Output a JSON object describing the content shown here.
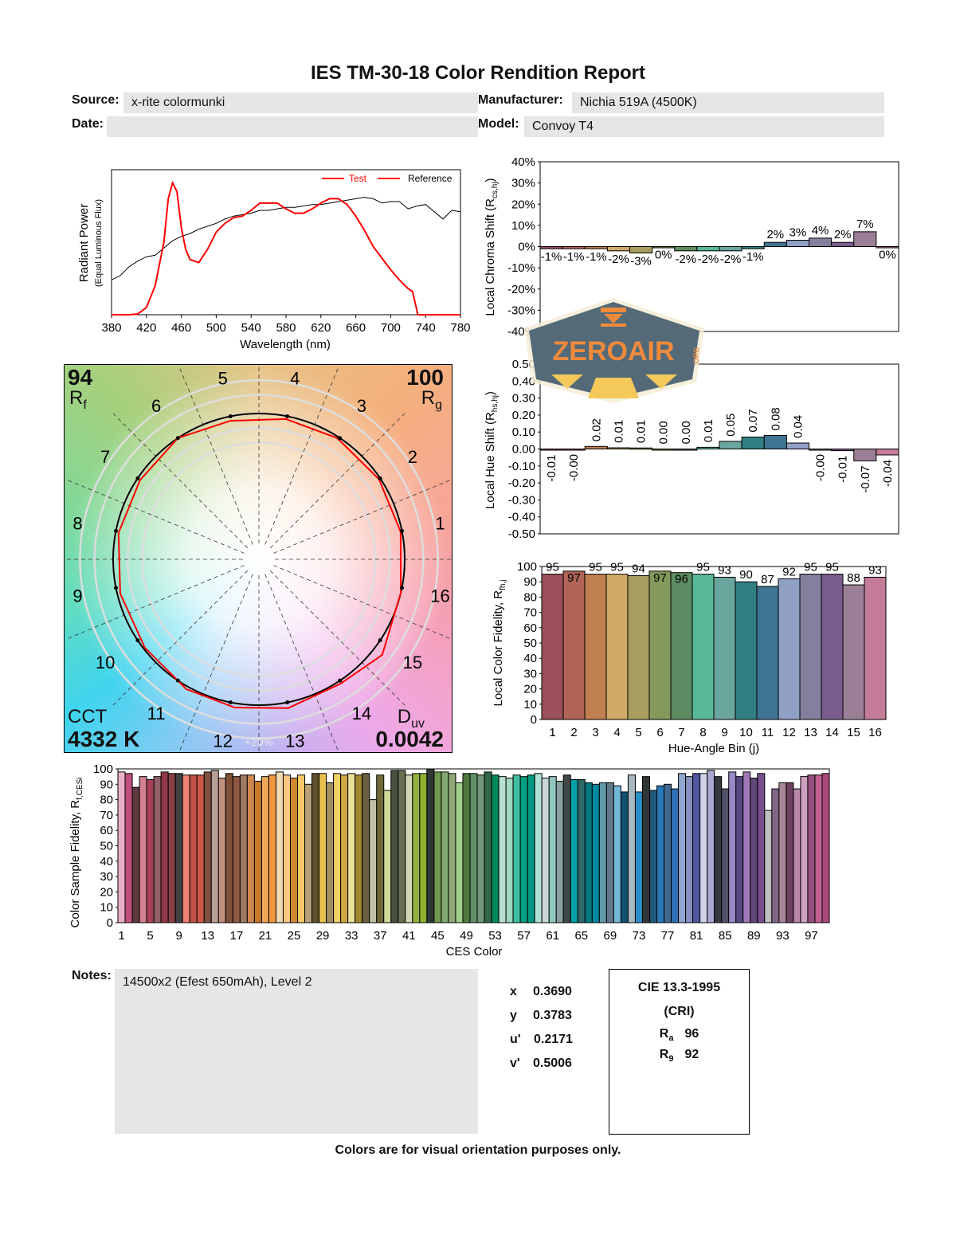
{
  "title": "IES TM-30-18 Color Rendition Report",
  "header": {
    "source_label": "Source:",
    "source": "x-rite colormunki",
    "manufacturer_label": "Manufacturer:",
    "manufacturer": "Nichia 519A (4500K)",
    "date_label": "Date:",
    "date": "",
    "model_label": "Model:",
    "model": "Convoy T4"
  },
  "watermark": {
    "text": "ZEROAIR",
    "suffix": "ORG",
    "colors": {
      "fill": "#546a78",
      "orange": "#f08a3c",
      "yellow": "#f5c85a"
    }
  },
  "vector_graphic": {
    "rf_value": "94",
    "rf_label": "R",
    "rf_sub": "f",
    "rg_value": "100",
    "rg_label": "R",
    "rg_sub": "g",
    "cct_label": "CCT",
    "cct_value": "4332 K",
    "duv_label": "D",
    "duv_sub": "uv",
    "duv_value": "0.0042",
    "ring_label": "+20%",
    "bin_labels": [
      "1",
      "2",
      "3",
      "4",
      "5",
      "6",
      "7",
      "8",
      "9",
      "10",
      "11",
      "12",
      "13",
      "14",
      "15",
      "16"
    ],
    "colors": {
      "test": "#ff0000",
      "reference": "#000000"
    }
  },
  "chart_data": [
    {
      "type": "line",
      "xlabel": "Wavelength (nm)",
      "ylabel": "Radiant Power",
      "ylabel_sub": "(Equal Luminous Flux)",
      "xlim": [
        380,
        780
      ],
      "xticks": [
        380,
        420,
        460,
        500,
        540,
        580,
        620,
        660,
        700,
        740,
        780
      ],
      "legend": "top-right",
      "series": [
        {
          "name": "Test",
          "color": "#ff0000",
          "points": [
            [
              380,
              0
            ],
            [
              400,
              0
            ],
            [
              410,
              0.005
            ],
            [
              420,
              0.05
            ],
            [
              430,
              0.2
            ],
            [
              440,
              0.5
            ],
            [
              445,
              0.8
            ],
            [
              450,
              0.91
            ],
            [
              455,
              0.85
            ],
            [
              460,
              0.6
            ],
            [
              465,
              0.45
            ],
            [
              470,
              0.38
            ],
            [
              480,
              0.36
            ],
            [
              490,
              0.45
            ],
            [
              500,
              0.57
            ],
            [
              510,
              0.63
            ],
            [
              520,
              0.67
            ],
            [
              530,
              0.68
            ],
            [
              540,
              0.72
            ],
            [
              550,
              0.77
            ],
            [
              560,
              0.77
            ],
            [
              570,
              0.77
            ],
            [
              580,
              0.73
            ],
            [
              590,
              0.7
            ],
            [
              600,
              0.7
            ],
            [
              610,
              0.73
            ],
            [
              620,
              0.77
            ],
            [
              630,
              0.8
            ],
            [
              640,
              0.8
            ],
            [
              650,
              0.76
            ],
            [
              660,
              0.68
            ],
            [
              670,
              0.58
            ],
            [
              680,
              0.47
            ],
            [
              690,
              0.39
            ],
            [
              700,
              0.31
            ],
            [
              710,
              0.24
            ],
            [
              720,
              0.18
            ],
            [
              725,
              0.16
            ],
            [
              730,
              0.03
            ],
            [
              731,
              0
            ],
            [
              780,
              0
            ]
          ]
        },
        {
          "name": "Reference",
          "color": "#000000",
          "points": [
            [
              380,
              0.24
            ],
            [
              390,
              0.27
            ],
            [
              400,
              0.33
            ],
            [
              410,
              0.37
            ],
            [
              420,
              0.4
            ],
            [
              430,
              0.41
            ],
            [
              440,
              0.46
            ],
            [
              450,
              0.51
            ],
            [
              460,
              0.54
            ],
            [
              470,
              0.56
            ],
            [
              480,
              0.59
            ],
            [
              490,
              0.61
            ],
            [
              500,
              0.63
            ],
            [
              510,
              0.66
            ],
            [
              520,
              0.68
            ],
            [
              530,
              0.69
            ],
            [
              540,
              0.7
            ],
            [
              550,
              0.72
            ],
            [
              560,
              0.72
            ],
            [
              570,
              0.73
            ],
            [
              580,
              0.74
            ],
            [
              590,
              0.74
            ],
            [
              600,
              0.75
            ],
            [
              610,
              0.76
            ],
            [
              620,
              0.76
            ],
            [
              630,
              0.77
            ],
            [
              640,
              0.78
            ],
            [
              650,
              0.79
            ],
            [
              660,
              0.8
            ],
            [
              670,
              0.81
            ],
            [
              680,
              0.8
            ],
            [
              690,
              0.77
            ],
            [
              700,
              0.78
            ],
            [
              710,
              0.78
            ],
            [
              720,
              0.73
            ],
            [
              730,
              0.75
            ],
            [
              740,
              0.76
            ],
            [
              750,
              0.71
            ],
            [
              760,
              0.66
            ],
            [
              770,
              0.72
            ],
            [
              780,
              0.71
            ]
          ]
        }
      ]
    },
    {
      "type": "bar",
      "ylabel": "Local Chroma Shift (R",
      "ylabel_sub": "cs,hj",
      "ylabel_end": ")",
      "ylim": [
        -40,
        40
      ],
      "yticks": [
        "-40%",
        "-30%",
        "-20%",
        "-10%",
        "0%",
        "10%",
        "20%",
        "30%",
        "40%"
      ],
      "categories": [
        "1",
        "2",
        "3",
        "4",
        "5",
        "6",
        "7",
        "8",
        "9",
        "10",
        "11",
        "12",
        "13",
        "14",
        "15",
        "16"
      ],
      "values": [
        -1,
        -1,
        -1,
        -2,
        -3,
        0,
        -2,
        -2,
        -2,
        -1,
        2,
        3,
        4,
        2,
        7,
        0
      ],
      "labels": [
        "-1%",
        "-1%",
        "-1%",
        "-2%",
        "-3%",
        "0%",
        "-2%",
        "-2%",
        "-2%",
        "-1%",
        "2%",
        "3%",
        "4%",
        "2%",
        "7%",
        "0%"
      ]
    },
    {
      "type": "bar",
      "ylabel": "Local Hue Shift (R",
      "ylabel_sub": "hs,hj",
      "ylabel_end": ")",
      "ylim": [
        -0.5,
        0.5
      ],
      "yticks": [
        "-0.50",
        "-0.40",
        "-0.30",
        "-0.20",
        "-0.10",
        "0.00",
        "0.10",
        "0.20",
        "0.30",
        "0.40",
        "0.50"
      ],
      "categories": [
        "1",
        "2",
        "3",
        "4",
        "5",
        "6",
        "7",
        "8",
        "9",
        "10",
        "11",
        "12",
        "13",
        "14",
        "15",
        "16"
      ],
      "values": [
        -0.005,
        -0.002,
        0.015,
        0.007,
        0.006,
        0.0,
        0.0,
        0.01,
        0.045,
        0.07,
        0.08,
        0.035,
        -0.002,
        -0.01,
        -0.07,
        -0.035
      ],
      "labels": [
        "-0.01",
        "-0.00",
        "0.02",
        "0.01",
        "0.01",
        "0.00",
        "0.00",
        "0.01",
        "0.05",
        "0.07",
        "0.08",
        "0.04",
        "-0.00",
        "-0.01",
        "-0.07",
        "-0.04"
      ]
    },
    {
      "type": "bar",
      "xlabel": "Hue-Angle Bin (j)",
      "ylabel": "Local Color Fidelity, R",
      "ylabel_sub": "fh,j",
      "ylim": [
        0,
        100
      ],
      "yticks": [
        "0",
        "10",
        "20",
        "30",
        "40",
        "50",
        "60",
        "70",
        "80",
        "90",
        "100"
      ],
      "categories": [
        "1",
        "2",
        "3",
        "4",
        "5",
        "6",
        "7",
        "8",
        "9",
        "10",
        "11",
        "12",
        "13",
        "14",
        "15",
        "16"
      ],
      "values": [
        95,
        97,
        95,
        95,
        94,
        97,
        96,
        95,
        93,
        90,
        87,
        92,
        95,
        95,
        88,
        93
      ],
      "labels": [
        "95",
        "97",
        "95",
        "95",
        "94",
        "97",
        "96",
        "95",
        "93",
        "90",
        "87",
        "92",
        "95",
        "95",
        "88",
        "93"
      ],
      "colors": [
        "#9b505a",
        "#b06458",
        "#c08050",
        "#cfaa68",
        "#a99e5f",
        "#84995c",
        "#5e8c62",
        "#57b89a",
        "#6aa59e",
        "#317f82",
        "#3f7592",
        "#90a0c4",
        "#837f9d",
        "#7a5c8c",
        "#9a7f96",
        "#c47c98"
      ]
    },
    {
      "type": "bar",
      "xlabel": "CES Color",
      "ylabel": "Color Sample Fidelity, R",
      "ylabel_sub": "f,CESi",
      "ylim": [
        0,
        100
      ],
      "yticks": [
        "0",
        "10",
        "20",
        "30",
        "40",
        "50",
        "60",
        "70",
        "80",
        "90",
        "100"
      ],
      "xticks": [
        "1",
        "5",
        "9",
        "13",
        "17",
        "21",
        "25",
        "29",
        "33",
        "37",
        "41",
        "45",
        "49",
        "53",
        "57",
        "61",
        "65",
        "69",
        "73",
        "77",
        "81",
        "85",
        "89",
        "93",
        "97"
      ],
      "values": [
        98,
        97,
        88,
        95,
        93,
        95,
        98,
        97,
        97,
        96,
        96,
        96,
        98,
        99,
        94,
        97,
        95,
        96,
        96,
        92,
        95,
        96,
        98,
        96,
        94,
        96,
        90,
        97,
        97,
        91,
        97,
        96,
        97,
        96,
        97,
        80,
        96,
        86,
        99,
        99,
        96,
        97,
        97,
        100,
        98,
        98,
        97,
        91,
        97,
        97,
        96,
        98,
        96,
        95,
        94,
        96,
        95,
        96,
        97,
        94,
        95,
        92,
        96,
        93,
        93,
        91,
        90,
        91,
        91,
        89,
        85,
        96,
        85,
        95,
        86,
        89,
        90,
        87,
        97,
        95,
        97,
        97,
        99,
        95,
        87,
        98,
        95,
        98,
        94,
        97,
        73,
        87,
        91,
        91,
        87,
        95,
        96,
        96,
        97
      ],
      "colors": [
        "#e8b0c8",
        "#c05080",
        "#603840",
        "#d08090",
        "#a84058",
        "#906068",
        "#903848",
        "#884048",
        "#404040",
        "#f08070",
        "#c05048",
        "#d05848",
        "#805040",
        "#b8a098",
        "#c09080",
        "#805038",
        "#905840",
        "#a07860",
        "#d08850",
        "#c87828",
        "#f0a858",
        "#f09840",
        "#f0d8b0",
        "#f8c880",
        "#d08830",
        "#f8c868",
        "#b8a078",
        "#605030",
        "#e8c050",
        "#a09060",
        "#f0d060",
        "#d0a840",
        "#e8e098",
        "#a08830",
        "#686040",
        "#c0c0a8",
        "#706838",
        "#d0d898",
        "#485040",
        "#687050",
        "#d0d8b8",
        "#90b040",
        "#90b030",
        "#303838",
        "#709850",
        "#80a870",
        "#90a878",
        "#a0d088",
        "#507840",
        "#609068",
        "#709878",
        "#306848",
        "#008858",
        "#b8e0d0",
        "#a0d8c0",
        "#40c0a0",
        "#00a080",
        "#009880",
        "#b0e0d8",
        "#c8d8d8",
        "#90c8c0",
        "#88a0a0",
        "#404848",
        "#00a0a8",
        "#306868",
        "#007880",
        "#0088a0",
        "#6098a8",
        "#607888",
        "#70b8d8",
        "#105070",
        "#a8b8c0",
        "#2890c8",
        "#303538",
        "#205878",
        "#2878b8",
        "#406890",
        "#3070b8",
        "#90a8d0",
        "#8890c0",
        "#5058a0",
        "#d0d4e8",
        "#a8a8d0",
        "#383840",
        "#505068",
        "#9888c8",
        "#584880",
        "#a078b8",
        "#604878",
        "#785090",
        "#c0c0c0",
        "#806888",
        "#a88898",
        "#704060",
        "#b888a8",
        "#d0a0c0",
        "#985080",
        "#c06090",
        "#a84878"
      ]
    }
  ],
  "notes": {
    "label": "Notes:",
    "text": "14500x2 (Efest 650mAh), Level 2"
  },
  "chromaticity": [
    {
      "label": "x",
      "value": "0.3690"
    },
    {
      "label": "y",
      "value": "0.3783"
    },
    {
      "label": "u'",
      "value": "0.2171"
    },
    {
      "label": "v'",
      "value": "0.5006"
    }
  ],
  "cie": {
    "title": "CIE 13.3-1995",
    "subtitle": "(CRI)",
    "ra_label": "R",
    "ra_sub": "a",
    "ra_value": "96",
    "r9_label": "R",
    "r9_sub": "9",
    "r9_value": "92"
  },
  "footer": "Colors are for visual orientation purposes only."
}
